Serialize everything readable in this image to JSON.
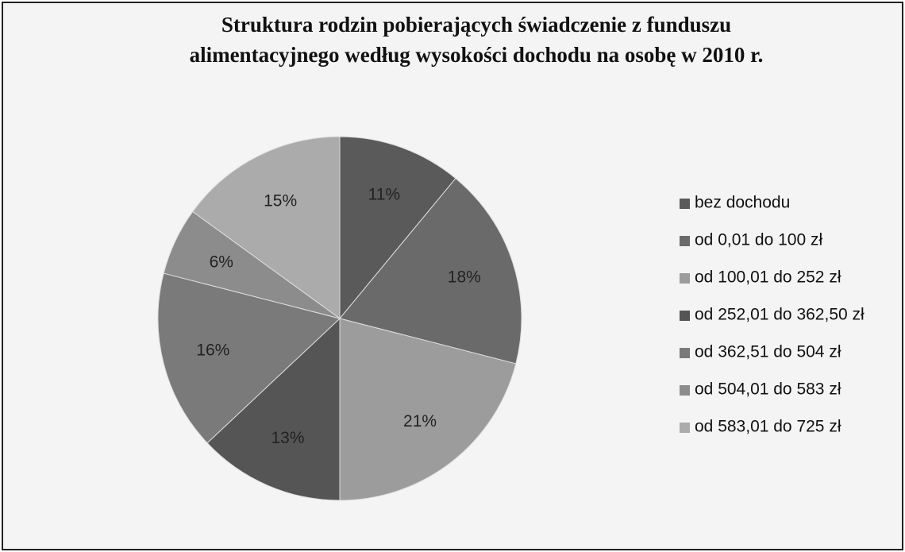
{
  "chart_data": {
    "type": "pie",
    "title": [
      "Struktura rodzin pobierających świadczenie z funduszu",
      "alimentacyjnego według wysokości dochodu na osobę w 2010 r."
    ],
    "categories": [
      "bez dochodu",
      "od 0,01 do 100 zł",
      "od 100,01 do 252 zł",
      "od 252,01 do 362,50 zł",
      "od 362,51 do 504 zł",
      "od 504,01 do 583 zł",
      "od 583,01 do 725 zł"
    ],
    "values": [
      11,
      18,
      21,
      13,
      16,
      6,
      15
    ],
    "value_labels": [
      "11%",
      "18%",
      "21%",
      "13%",
      "16%",
      "6%",
      "15%"
    ],
    "colors": [
      "#5a5a5a",
      "#6a6a6a",
      "#9c9c9c",
      "#555555",
      "#7a7a7a",
      "#8c8c8c",
      "#ababab"
    ],
    "legend": "right"
  }
}
